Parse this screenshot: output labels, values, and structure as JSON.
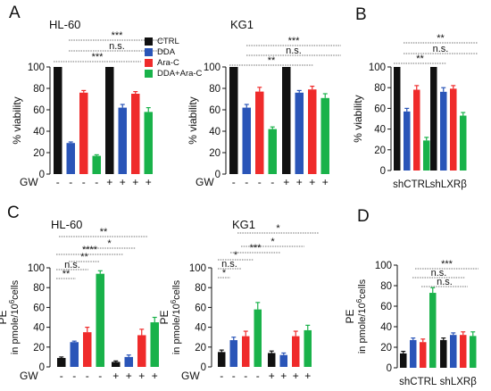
{
  "panels": [
    {
      "letter": "A"
    },
    {
      "letter": "B"
    },
    {
      "letter": "C"
    },
    {
      "letter": "D"
    }
  ],
  "legend": [
    {
      "label": "CTRL",
      "color": "#111111"
    },
    {
      "label": "DDA",
      "color": "#2a55b8"
    },
    {
      "label": "Ara-C",
      "color": "#ef2b2b"
    },
    {
      "label": "DDA+Ara-C",
      "color": "#19b24a"
    }
  ],
  "chart_data": [
    {
      "type": "bar",
      "panel": "A",
      "title": "HL-60",
      "ylabel": "% viability",
      "ylim": [
        0,
        100
      ],
      "yticks": [
        0,
        20,
        40,
        60,
        80,
        100
      ],
      "x_row_label": "GW",
      "groups": [
        {
          "x_marks": [
            "-",
            "-",
            "-",
            "-"
          ],
          "values": [
            100,
            29,
            76,
            17
          ],
          "errors": [
            0,
            1,
            2,
            1
          ]
        },
        {
          "x_marks": [
            "+",
            "+",
            "+",
            "+"
          ],
          "values": [
            100,
            62,
            75,
            58
          ],
          "errors": [
            0,
            3,
            2,
            4
          ]
        }
      ],
      "significance": [
        {
          "label": "***"
        },
        {
          "label": "n.s."
        },
        {
          "label": "***"
        }
      ]
    },
    {
      "type": "bar",
      "panel": "A",
      "title": "KG1",
      "ylabel": "% viability",
      "ylim": [
        0,
        100
      ],
      "yticks": [
        0,
        20,
        40,
        60,
        80,
        100
      ],
      "x_row_label": "GW",
      "groups": [
        {
          "x_marks": [
            "-",
            "-",
            "-",
            "-"
          ],
          "values": [
            100,
            62,
            77,
            42
          ],
          "errors": [
            0,
            3,
            4,
            2
          ]
        },
        {
          "x_marks": [
            "+",
            "+",
            "+",
            "+"
          ],
          "values": [
            100,
            76,
            79,
            71
          ],
          "errors": [
            0,
            2,
            3,
            4
          ]
        }
      ],
      "significance": [
        {
          "label": "***"
        },
        {
          "label": "n.s."
        },
        {
          "label": "**"
        }
      ]
    },
    {
      "type": "bar",
      "panel": "B",
      "title": "",
      "ylabel": "% viability",
      "ylim": [
        0,
        100
      ],
      "yticks": [
        0,
        20,
        40,
        60,
        80,
        100
      ],
      "x_row_label": "",
      "groups": [
        {
          "label": "shCTRL",
          "values": [
            100,
            57,
            78,
            29
          ],
          "errors": [
            0,
            3,
            4,
            3
          ]
        },
        {
          "label": "shLXRβ",
          "values": [
            100,
            76,
            79,
            53
          ],
          "errors": [
            0,
            4,
            3,
            3
          ]
        }
      ],
      "significance": [
        {
          "label": "**"
        },
        {
          "label": "n.s."
        },
        {
          "label": "**"
        }
      ]
    },
    {
      "type": "bar",
      "panel": "C",
      "title": "HL-60",
      "ylabel": "PE",
      "ylabel2": "in pmole/10",
      "ylabel_sup": "6",
      "ylabel_tail": "cells",
      "ylim": [
        0,
        100
      ],
      "yticks": [
        0,
        20,
        40,
        60,
        80,
        100
      ],
      "x_row_label": "GW",
      "groups": [
        {
          "x_marks": [
            "-",
            "-",
            "-",
            "-"
          ],
          "values": [
            9,
            25,
            35,
            94
          ],
          "errors": [
            1,
            1,
            5,
            3
          ]
        },
        {
          "x_marks": [
            "+",
            "+",
            "+",
            "+"
          ],
          "values": [
            5,
            10,
            32,
            45
          ],
          "errors": [
            1,
            2,
            6,
            5
          ]
        }
      ],
      "significance": [
        {
          "label": "**"
        },
        {
          "label": "n.s."
        },
        {
          "label": "**"
        },
        {
          "label": "****"
        },
        {
          "label": "*"
        },
        {
          "label": "**"
        }
      ]
    },
    {
      "type": "bar",
      "panel": "C",
      "title": "KG1",
      "ylabel": "PE",
      "ylabel2": "in pmole/10",
      "ylabel_sup": "6",
      "ylabel_tail": "cells",
      "ylim": [
        0,
        100
      ],
      "yticks": [
        0,
        20,
        40,
        60,
        80,
        100
      ],
      "x_row_label": "GW",
      "groups": [
        {
          "x_marks": [
            "-",
            "-",
            "-",
            "-"
          ],
          "values": [
            15,
            27,
            31,
            58
          ],
          "errors": [
            2,
            3,
            5,
            7
          ]
        },
        {
          "x_marks": [
            "+",
            "+",
            "+",
            "+"
          ],
          "values": [
            14,
            12,
            31,
            37
          ],
          "errors": [
            2,
            2,
            5,
            5
          ]
        }
      ],
      "significance": [
        {
          "label": "*"
        },
        {
          "label": "n.s."
        },
        {
          "label": "*"
        },
        {
          "label": "***"
        },
        {
          "label": "*"
        },
        {
          "label": "*"
        }
      ]
    },
    {
      "type": "bar",
      "panel": "D",
      "title": "",
      "ylabel": "PE",
      "ylabel2": "in pmole/10",
      "ylabel_sup": "6",
      "ylabel_tail": "cells",
      "ylim": [
        0,
        100
      ],
      "yticks": [
        0,
        20,
        40,
        60,
        80,
        100
      ],
      "x_row_label": "",
      "groups": [
        {
          "label": "shCTRL",
          "values": [
            14,
            27,
            25,
            73
          ],
          "errors": [
            2,
            2,
            3,
            5
          ]
        },
        {
          "label": "shLXRβ",
          "values": [
            27,
            32,
            32,
            31
          ],
          "errors": [
            2,
            2,
            3,
            4
          ]
        }
      ],
      "significance": [
        {
          "label": "***"
        },
        {
          "label": "n.s."
        },
        {
          "label": "n.s."
        }
      ]
    }
  ]
}
